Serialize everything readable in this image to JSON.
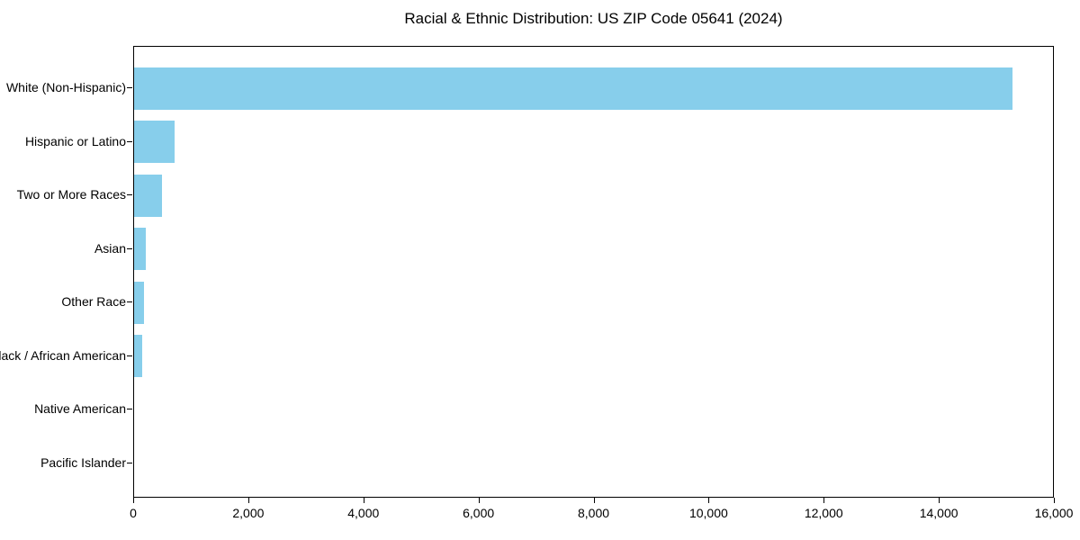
{
  "chart_data": {
    "type": "bar",
    "orientation": "horizontal",
    "title": "Racial & Ethnic Distribution: US ZIP Code 05641 (2024)",
    "categories": [
      "White (Non-Hispanic)",
      "Hispanic or Latino",
      "Two or More Races",
      "Asian",
      "Other Race",
      "Black / African American",
      "Native American",
      "Pacific Islander"
    ],
    "values": [
      15270,
      700,
      485,
      210,
      165,
      145,
      0,
      0
    ],
    "xlabel": "",
    "ylabel": "",
    "xlim": [
      0,
      16000
    ],
    "x_ticks": [
      0,
      2000,
      4000,
      6000,
      8000,
      10000,
      12000,
      14000,
      16000
    ],
    "x_tick_labels": [
      "0",
      "2,000",
      "4,000",
      "6,000",
      "8,000",
      "10,000",
      "12,000",
      "14,000",
      "16,000"
    ],
    "bar_color": "#87CEEB",
    "axis_color": "#000000",
    "background_color": "#ffffff",
    "grid": false,
    "legend_position": "none"
  }
}
